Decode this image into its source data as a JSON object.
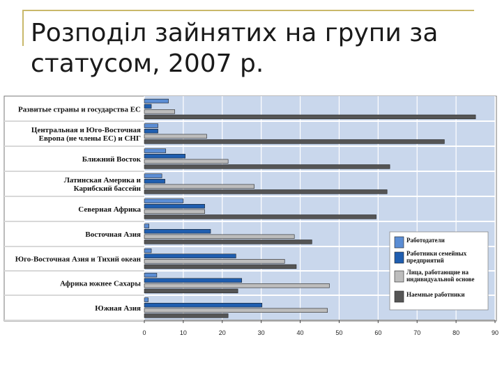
{
  "slide": {
    "title": "Розподіл зайнятих на групи за статусом, 2007 р."
  },
  "colors": {
    "plot_bg": "#c9d7ec",
    "label_bg": "#ffffff",
    "employers": "#5b8dd4",
    "family_workers": "#1f5eb0",
    "own_account": "#bdbdbd",
    "wage_employees": "#555555"
  },
  "chart_data": {
    "type": "bar",
    "orientation": "horizontal",
    "categories": [
      "Развитые страны и государства ЕС",
      "Центральная и Юго-Восточная Европа (не члены ЕС) и СНГ",
      "Ближний Восток",
      "Латинская Америка и Карибский бассейн",
      "Северная Африка",
      "Восточная Азия",
      "Юго-Восточная Азия и Тихий океан",
      "Африка южнее Сахары",
      "Южная Азия"
    ],
    "category_lines": [
      [
        "Развитые страны и государства ЕС"
      ],
      [
        "Центральная и Юго-Восточная",
        "Европа (не члены ЕС) и СНГ"
      ],
      [
        "Ближний Восток"
      ],
      [
        "Латинская Америка и",
        "Карибский бассейн"
      ],
      [
        "Северная Африка"
      ],
      [
        "Восточная Азия"
      ],
      [
        "Юго-Восточная Азия и Тихий океан"
      ],
      [
        "Африка южнее Сахары"
      ],
      [
        "Южная Азия"
      ]
    ],
    "series": [
      {
        "name": "Работодатели",
        "values": [
          6.2,
          3.5,
          5.5,
          4.5,
          10,
          1.2,
          1.8,
          3.2,
          1.0
        ]
      },
      {
        "name": "Работники семейных предприятий",
        "values": [
          1.8,
          3.5,
          10.5,
          5.3,
          15.5,
          17,
          23.5,
          25,
          30.2
        ]
      },
      {
        "name": "Лица, работающие на индивидуальной основе",
        "values": [
          7.8,
          16,
          21.5,
          28.2,
          15.5,
          38.5,
          36,
          47.5,
          47
        ]
      },
      {
        "name": "Наемные работники",
        "values": [
          85,
          77,
          63,
          62.3,
          59.5,
          43,
          39,
          24,
          21.5
        ]
      }
    ],
    "legend_lines": [
      [
        "Работодатели"
      ],
      [
        "Работники семейных",
        "предприятий"
      ],
      [
        "Лица, работающие на",
        "индивидуальной основе"
      ],
      [
        "Наемные работники"
      ]
    ],
    "x_ticks": [
      "0",
      "10",
      "20",
      "30",
      "40",
      "50",
      "60",
      "70",
      "80",
      "90"
    ],
    "xlim": [
      0,
      90
    ],
    "legend_position": "right",
    "grid": "vertical"
  }
}
